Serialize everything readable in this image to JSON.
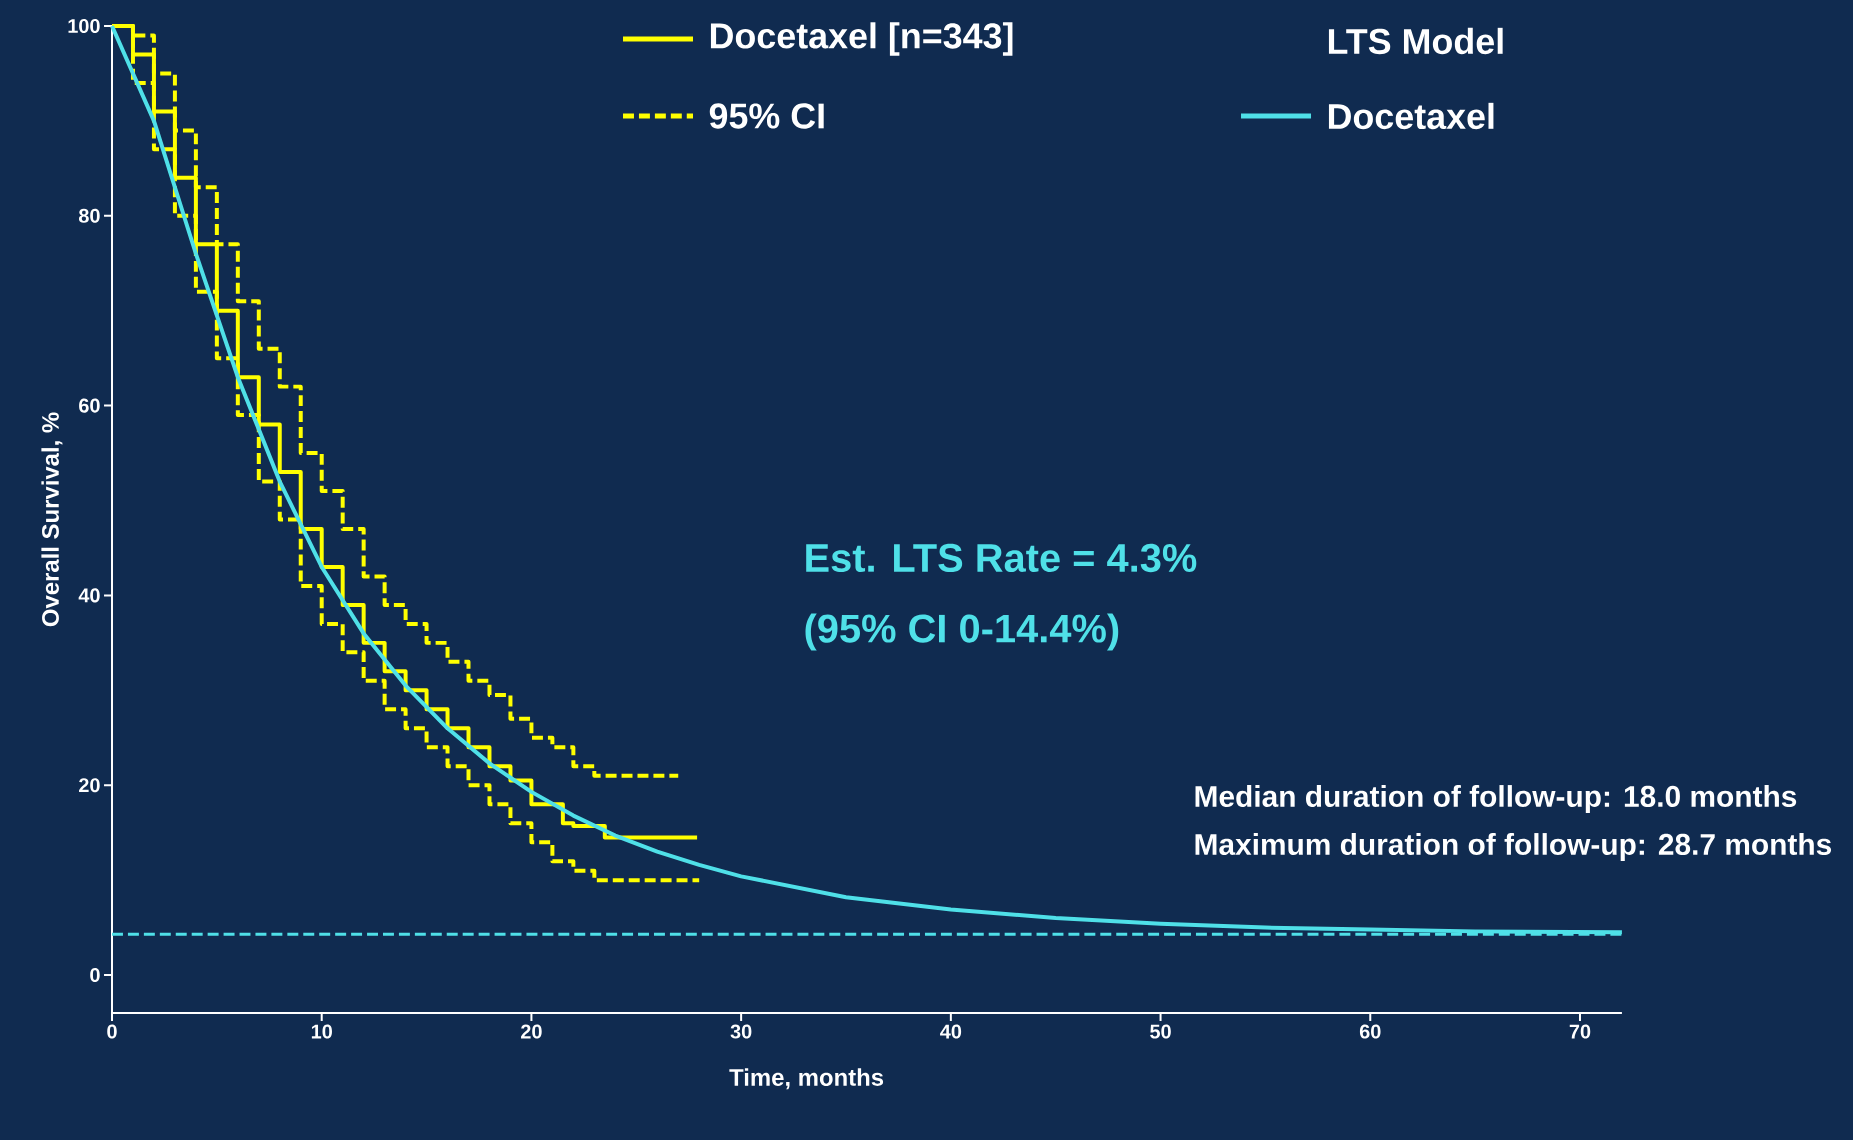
{
  "chart_data": {
    "type": "line",
    "xlabel": "Time, months",
    "ylabel": "Overall Survival, %",
    "legend_title": "LTS Model",
    "legend": "top",
    "xlim": [
      0,
      72
    ],
    "ylim": [
      -4,
      100
    ],
    "xticks": [
      0,
      10,
      20,
      30,
      40,
      50,
      60,
      70
    ],
    "yticks": [
      0,
      20,
      40,
      60,
      80,
      100
    ],
    "series": [
      {
        "name": "Docetaxel [n=343]",
        "type": "step",
        "color": "#ffff00",
        "line_style": "solid",
        "x": [
          0,
          1,
          2,
          3,
          4,
          5,
          6,
          7,
          8,
          9,
          10,
          11,
          12,
          13,
          14,
          15,
          16,
          17,
          18,
          19,
          20,
          21,
          21.5,
          22,
          23.5,
          27.9
        ],
        "values": [
          100,
          97,
          91,
          84,
          77,
          70,
          63,
          58,
          53,
          47,
          43,
          39,
          35,
          32,
          30,
          28,
          26,
          24,
          22,
          20.5,
          18,
          18,
          16,
          15.7,
          14.5,
          14.5
        ]
      },
      {
        "name": "95% CI",
        "type": "step",
        "color": "#ffff00",
        "line_style": "dashed",
        "x": [
          0,
          1,
          2,
          3,
          4,
          5,
          6,
          7,
          8,
          9,
          10,
          11,
          12,
          13,
          14,
          15,
          16,
          17,
          18,
          19,
          20,
          21,
          22,
          23,
          27
        ],
        "values": [
          100,
          99,
          95,
          89,
          83,
          77,
          71,
          66,
          62,
          55,
          51,
          47,
          42,
          39,
          37,
          35,
          33,
          31,
          29.5,
          27,
          25,
          24,
          22,
          21,
          21
        ]
      },
      {
        "type": "step",
        "color": "#ffff00",
        "line_style": "dashed",
        "x": [
          0,
          1,
          2,
          3,
          4,
          5,
          6,
          7,
          8,
          9,
          10,
          11,
          12,
          13,
          14,
          15,
          16,
          17,
          18,
          19,
          20,
          21,
          22,
          23,
          28
        ],
        "values": [
          100,
          94,
          87,
          80,
          72,
          65,
          59,
          52,
          48,
          41,
          37,
          34,
          31,
          28,
          26,
          24,
          22,
          20,
          18,
          16,
          14,
          12,
          11,
          10,
          10
        ]
      },
      {
        "name": "Docetaxel",
        "color": "#4fe0e8",
        "line_style": "solid",
        "x": [
          0,
          2,
          4,
          6,
          8,
          10,
          12,
          14,
          16,
          18,
          20,
          22,
          24,
          26,
          28,
          30,
          35,
          40,
          45,
          50,
          55,
          60,
          65,
          72
        ],
        "values": [
          100,
          90,
          76,
          63,
          52,
          43,
          36,
          30.5,
          26,
          22.3,
          19.3,
          16.8,
          14.7,
          13,
          11.6,
          10.4,
          8.2,
          6.9,
          6,
          5.4,
          5,
          4.8,
          4.6,
          4.5
        ]
      }
    ],
    "ref_lines": [
      {
        "axis": "y",
        "value": 4.3,
        "color": "#4fe0e8",
        "line_style": "dashed"
      }
    ],
    "annotations": [
      "Est. LTS Rate = 4.3%",
      "(95% CI 0-14.4%)",
      "Median duration of follow-up: 18.0 months",
      "Maximum duration of follow-up: 28.7 months"
    ]
  }
}
